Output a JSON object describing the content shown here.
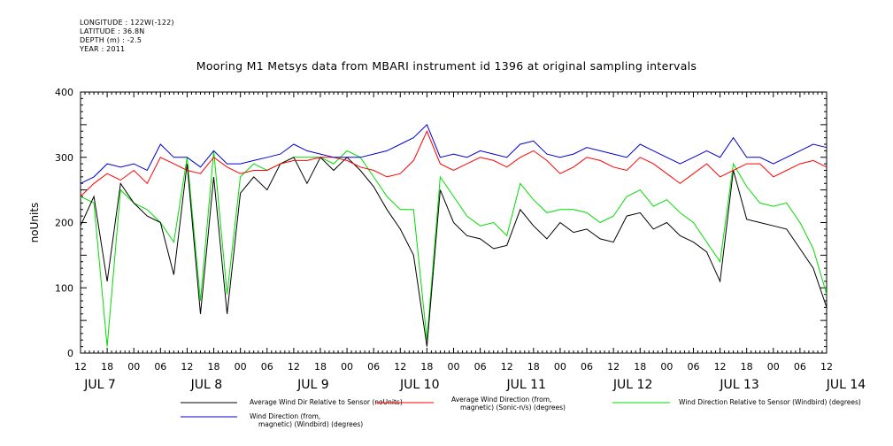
{
  "header": {
    "lines": [
      "LONGITUDE : 122W(-122)",
      "LATITUDE : 36.8N",
      "DEPTH (m) : -2.5",
      "YEAR : 2011"
    ],
    "title": "Mooring M1 Metsys data from MBARI instrument id 1396 at original sampling intervals"
  },
  "chart_data": {
    "type": "line",
    "title": "Mooring M1 Metsys data from MBARI instrument id 1396 at original sampling intervals",
    "ylabel": "noUnits",
    "ylim": [
      0,
      400
    ],
    "yticks": [
      0,
      100,
      200,
      300,
      400
    ],
    "x_start": "JUL 7 12:00",
    "x_end": "JUL 14 12:00",
    "xlim_hours": [
      0,
      168
    ],
    "hour_tick_labels": [
      "12",
      "18",
      "00",
      "06",
      "12",
      "18",
      "00",
      "06",
      "12",
      "18",
      "00",
      "06",
      "12",
      "18",
      "00",
      "06",
      "12",
      "18",
      "00",
      "06",
      "12",
      "18",
      "00",
      "06",
      "12",
      "18",
      "00",
      "06",
      "12"
    ],
    "day_labels": [
      "JUL  7",
      "JUL  8",
      "JUL  9",
      "JUL 10",
      "JUL 11",
      "JUL 12",
      "JUL 13",
      "JUL 14"
    ],
    "x": [
      0,
      3,
      6,
      9,
      12,
      15,
      18,
      21,
      24,
      27,
      30,
      33,
      36,
      39,
      42,
      45,
      48,
      51,
      54,
      57,
      60,
      63,
      66,
      69,
      72,
      75,
      78,
      81,
      84,
      87,
      90,
      93,
      96,
      99,
      102,
      105,
      108,
      111,
      114,
      117,
      120,
      123,
      126,
      129,
      132,
      135,
      138,
      141,
      144,
      147,
      150,
      153,
      156,
      159,
      162,
      165,
      168
    ],
    "series": [
      {
        "name": "Average Wind Dir Relative to Sensor (noUnits)",
        "color": "#000000",
        "values": [
          195,
          240,
          110,
          260,
          230,
          210,
          200,
          120,
          290,
          60,
          270,
          60,
          245,
          270,
          250,
          290,
          300,
          260,
          300,
          280,
          300,
          280,
          255,
          220,
          190,
          150,
          10,
          250,
          200,
          180,
          175,
          160,
          165,
          220,
          195,
          175,
          200,
          185,
          190,
          175,
          170,
          210,
          215,
          190,
          200,
          180,
          170,
          155,
          110,
          280,
          205,
          200,
          195,
          190,
          160,
          130,
          70
        ]
      },
      {
        "name": "Average Wind Direction (from, magnetic) (Sonic-n/s) (degrees)",
        "color": "#ff0000",
        "values": [
          240,
          260,
          275,
          265,
          280,
          260,
          300,
          290,
          280,
          275,
          300,
          285,
          275,
          280,
          280,
          290,
          295,
          295,
          300,
          300,
          295,
          285,
          280,
          270,
          275,
          295,
          340,
          290,
          280,
          290,
          300,
          295,
          285,
          300,
          310,
          295,
          275,
          285,
          300,
          295,
          285,
          280,
          300,
          290,
          275,
          260,
          275,
          290,
          270,
          280,
          290,
          290,
          270,
          280,
          290,
          295,
          285
        ]
      },
      {
        "name": "Wind Direction Relative to Sensor (Windbird) (degrees)",
        "color": "#00dd00",
        "values": [
          240,
          230,
          10,
          250,
          230,
          220,
          200,
          170,
          300,
          80,
          310,
          90,
          270,
          290,
          280,
          290,
          300,
          300,
          300,
          290,
          310,
          300,
          270,
          240,
          220,
          220,
          20,
          270,
          240,
          210,
          195,
          200,
          180,
          260,
          235,
          215,
          220,
          220,
          215,
          200,
          210,
          240,
          250,
          225,
          235,
          215,
          200,
          170,
          140,
          290,
          255,
          230,
          225,
          230,
          200,
          160,
          90
        ]
      },
      {
        "name": "Wind Direction (from, magnetic) (Windbird) (degrees)",
        "color": "#0000cc",
        "values": [
          260,
          270,
          290,
          285,
          290,
          280,
          320,
          300,
          300,
          285,
          310,
          290,
          290,
          295,
          300,
          305,
          320,
          310,
          305,
          300,
          300,
          300,
          305,
          310,
          320,
          330,
          350,
          300,
          305,
          300,
          310,
          305,
          300,
          320,
          325,
          305,
          300,
          305,
          315,
          310,
          305,
          300,
          320,
          310,
          300,
          290,
          300,
          310,
          300,
          330,
          300,
          300,
          290,
          300,
          310,
          320,
          315
        ]
      }
    ],
    "legend_placement": "bottom",
    "grid": false
  },
  "legend": [
    {
      "label": "Average Wind Dir Relative to Sensor (noUnits)",
      "color": "#000000"
    },
    {
      "label": "Average Wind Direction (from,\nmagnetic) (Sonic-n/s) (degrees)",
      "color": "#ff0000"
    },
    {
      "label": "Wind Direction Relative to Sensor (Windbird) (degrees)",
      "color": "#00dd00"
    },
    {
      "label": "Wind Direction (from,\nmagnetic) (Windbird) (degrees)",
      "color": "#0000cc"
    }
  ]
}
